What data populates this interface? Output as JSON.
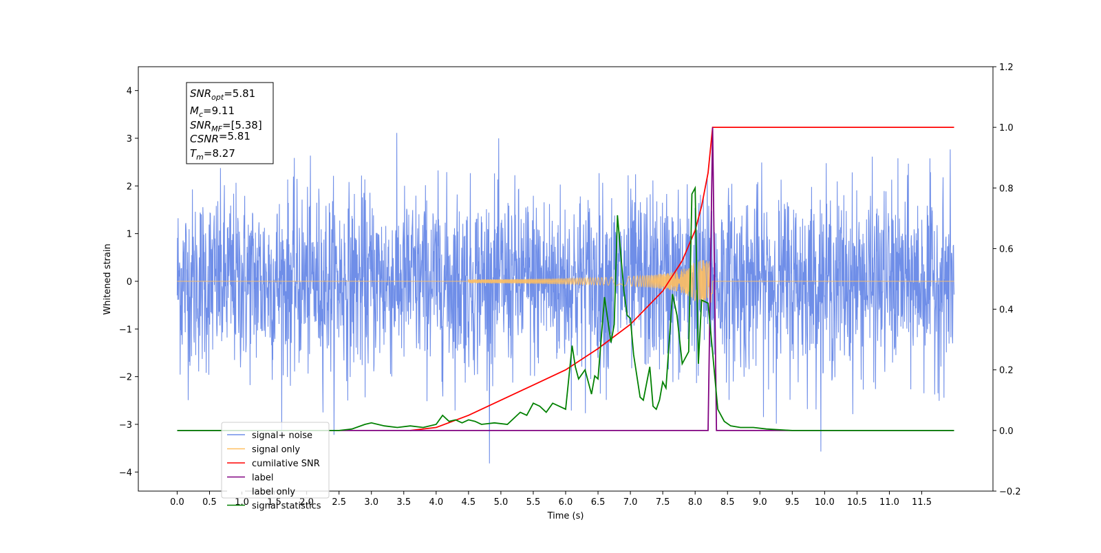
{
  "chart_data": {
    "type": "line",
    "title": "",
    "xlabel": "Time (s)",
    "ylabel": "Whitened strain",
    "ylabel_right": "",
    "xlim": [
      -0.6,
      12.6
    ],
    "ylim": [
      -4.4,
      4.5
    ],
    "ylim_right": [
      -0.2,
      1.2
    ],
    "xticks": [
      "0.0",
      "0.5",
      "1.0",
      "1.5",
      "2.0",
      "2.5",
      "3.0",
      "3.5",
      "4.0",
      "4.5",
      "5.0",
      "5.5",
      "6.0",
      "6.5",
      "7.0",
      "7.5",
      "8.0",
      "8.5",
      "9.0",
      "9.5",
      "10.0",
      "10.5",
      "11.0",
      "11.5"
    ],
    "yticks_left": [
      "4",
      "3",
      "2",
      "1",
      "0",
      "−1",
      "−2",
      "−3",
      "−4"
    ],
    "yticks_right": [
      "1.2",
      "1.0",
      "0.8",
      "0.6",
      "0.4",
      "0.2",
      "0.0",
      "−0.2"
    ],
    "grid": false,
    "legend_position": "lower-left",
    "annotation_lines": [
      {
        "main": "SNR",
        "sub": "opt",
        "rest": "=5.81"
      },
      {
        "main": "M",
        "sub": "c",
        "rest": "=9.11"
      },
      {
        "main": "SNR",
        "sub": "MF",
        "rest": "=[5.38]"
      },
      {
        "main": "CSNR",
        "sub": "",
        "rest": "=5.81"
      },
      {
        "main": "T",
        "sub": "m",
        "rest": "=8.27"
      }
    ],
    "series": [
      {
        "name": "signal+ noise",
        "color": "#6f8ee8",
        "axis": "left",
        "x_range": [
          0.0,
          12.0
        ],
        "approx_std": 0.95,
        "approx_min": -3.95,
        "approx_max": 4.1
      },
      {
        "name": "signal only",
        "color": "#ffbf60",
        "axis": "left",
        "x_range": [
          0.0,
          12.0
        ],
        "peak_time": 8.27,
        "peak_amplitude": 0.45,
        "onset": 4.5
      },
      {
        "name": "cumilative SNR",
        "color": "#ff0000",
        "axis": "right",
        "x": [
          3.6,
          4.0,
          4.5,
          5.0,
          5.5,
          6.0,
          6.5,
          7.0,
          7.5,
          7.8,
          8.0,
          8.1,
          8.2,
          8.27,
          8.3,
          9.0,
          10.0,
          11.0,
          12.0
        ],
        "y": [
          0.0,
          0.01,
          0.05,
          0.1,
          0.15,
          0.2,
          0.27,
          0.35,
          0.46,
          0.56,
          0.66,
          0.74,
          0.85,
          1.0,
          1.0,
          1.0,
          1.0,
          1.0,
          1.0
        ]
      },
      {
        "name": "label",
        "color": "#800080",
        "axis": "right",
        "x": [
          0.0,
          8.2,
          8.27,
          8.33,
          12.0
        ],
        "y": [
          0.0,
          0.0,
          1.0,
          0.0,
          0.0
        ]
      },
      {
        "name": "label only",
        "color": "#ffffff",
        "axis": "right",
        "x": [],
        "y": []
      },
      {
        "name": "signal statistics",
        "color": "#008000",
        "axis": "right",
        "x": [
          0.0,
          2.5,
          2.7,
          2.9,
          3.0,
          3.2,
          3.4,
          3.6,
          3.8,
          4.0,
          4.1,
          4.2,
          4.3,
          4.4,
          4.5,
          4.6,
          4.7,
          4.9,
          5.1,
          5.3,
          5.4,
          5.5,
          5.6,
          5.7,
          5.8,
          5.9,
          6.0,
          6.1,
          6.15,
          6.2,
          6.3,
          6.4,
          6.45,
          6.5,
          6.6,
          6.7,
          6.75,
          6.8,
          6.9,
          6.95,
          7.0,
          7.05,
          7.1,
          7.15,
          7.2,
          7.3,
          7.35,
          7.4,
          7.45,
          7.5,
          7.55,
          7.65,
          7.72,
          7.8,
          7.9,
          7.95,
          8.0,
          8.05,
          8.1,
          8.2,
          8.35,
          8.45,
          8.55,
          8.7,
          8.9,
          9.1,
          9.5,
          10.0,
          11.0,
          12.0
        ],
        "y": [
          0.0,
          0.0,
          0.005,
          0.02,
          0.025,
          0.015,
          0.01,
          0.015,
          0.01,
          0.02,
          0.05,
          0.03,
          0.035,
          0.025,
          0.035,
          0.03,
          0.02,
          0.025,
          0.02,
          0.06,
          0.05,
          0.09,
          0.08,
          0.06,
          0.09,
          0.08,
          0.07,
          0.28,
          0.21,
          0.17,
          0.2,
          0.12,
          0.18,
          0.17,
          0.44,
          0.29,
          0.35,
          0.71,
          0.46,
          0.38,
          0.37,
          0.25,
          0.18,
          0.11,
          0.1,
          0.21,
          0.08,
          0.07,
          0.1,
          0.16,
          0.14,
          0.45,
          0.38,
          0.22,
          0.26,
          0.78,
          0.8,
          0.22,
          0.43,
          0.42,
          0.07,
          0.03,
          0.015,
          0.01,
          0.01,
          0.005,
          0.0,
          0.0,
          0.0,
          0.0
        ]
      }
    ]
  }
}
